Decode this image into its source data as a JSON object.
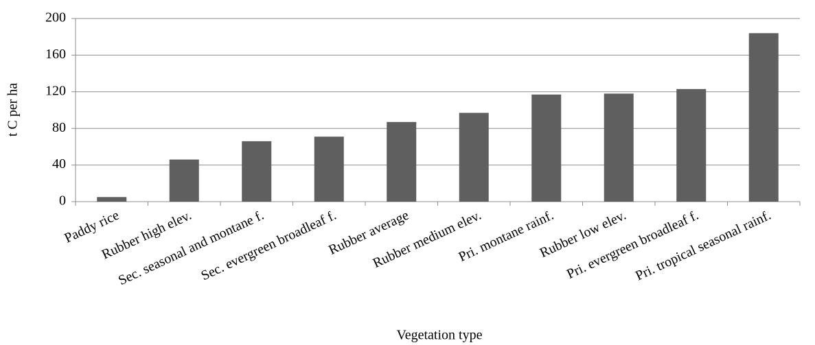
{
  "chart_data": {
    "type": "bar",
    "x_label": "Vegetation type",
    "y_label": "t C per ha",
    "categories": [
      "Paddy rice",
      "Rubber high elev.",
      "Sec. seasonal and montane f.",
      "Sec. evergreen broadleaf f.",
      "Rubber average",
      "Rubber medium elev.",
      "Pri. montane rainf.",
      "Rubber low elev.",
      "Pri. evergreen broadleaf f.",
      "Pri. tropical seasonal rainf."
    ],
    "values": [
      5,
      46,
      66,
      71,
      87,
      97,
      117,
      118,
      123,
      184
    ],
    "color": "#5f5f5f",
    "ylim": [
      0,
      200
    ],
    "yticks": [
      0,
      40,
      80,
      120,
      160,
      200
    ],
    "grid": true
  }
}
